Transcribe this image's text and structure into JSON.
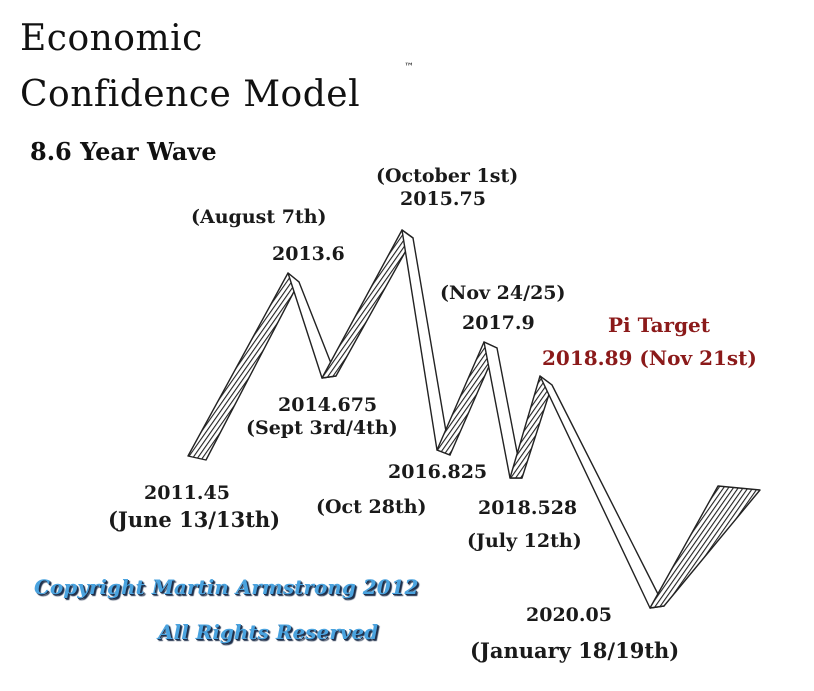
{
  "title_line1": "Economic",
  "title_line2": "Confidence Model",
  "trademark": "™",
  "subtitle": "8.6 Year Wave",
  "labels": {
    "p2011_date": "2011.45",
    "p2011_day": "(June 13/13th)",
    "p2013_day": "(August 7th)",
    "p2013_date": "2013.6",
    "p2014_date": "2014.675",
    "p2014_day": "(Sept 3rd/4th)",
    "p2015_day": "(October 1st)",
    "p2015_date": "2015.75",
    "p2016_date": "2016.825",
    "p2016_day": "(Oct 28th)",
    "p2017_day": "(Nov 24/25)",
    "p2017_date": "2017.9",
    "p2018a_date": "2018.528",
    "p2018a_day": "(July 12th)",
    "pi_label": "Pi Target",
    "pi_date": "2018.89 (Nov 21st)",
    "p2020_date": "2020.05",
    "p2020_day": "(January 18/19th)"
  },
  "copyright_line1": "Copyright Martin Armstrong 2012",
  "copyright_line2": "All Rights Reserved",
  "colors": {
    "pi_target": "#8b1a1a",
    "copyright": "#4aa3df",
    "ink": "#1a1a1a"
  }
}
